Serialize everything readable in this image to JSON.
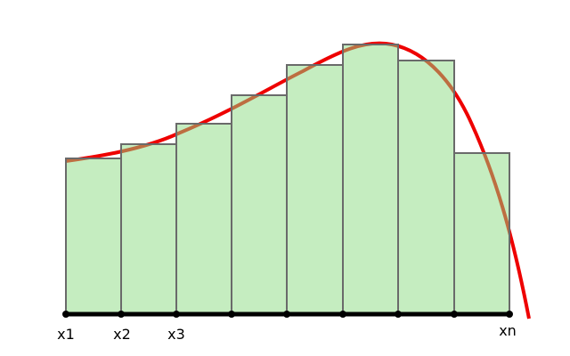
{
  "labels": [
    "x1",
    "x2",
    "x3",
    "xn"
  ]
}
